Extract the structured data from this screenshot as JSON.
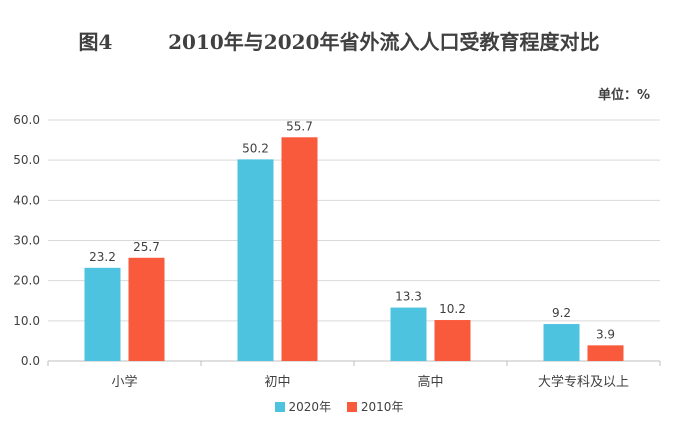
{
  "title": "图4        2010年与2020年省外流入人口受教育程度对比",
  "unit_label": "单位：%",
  "colors": {
    "series_2020": "#4DC3E0",
    "series_2010": "#FA5A3C",
    "grid": "#D9D9D9",
    "axis": "#BFBFBF"
  },
  "chart_data": {
    "type": "bar",
    "title": "图4        2010年与2020年省外流入人口受教育程度对比",
    "ylabel": "单位：%",
    "xlabel": "",
    "categories": [
      "小学",
      "初中",
      "高中",
      "大学专科及以上"
    ],
    "series": [
      {
        "name": "2020年",
        "values": [
          23.2,
          50.2,
          13.3,
          9.2
        ]
      },
      {
        "name": "2010年",
        "values": [
          25.7,
          55.7,
          10.2,
          3.9
        ]
      }
    ],
    "ylim": [
      0,
      60
    ],
    "yticks": [
      "0.0",
      "10.0",
      "20.0",
      "30.0",
      "40.0",
      "50.0",
      "60.0"
    ],
    "data_labels": [
      [
        "23.2",
        "50.2",
        "13.3",
        "9.2"
      ],
      [
        "25.7",
        "55.7",
        "10.2",
        "3.9"
      ]
    ],
    "grid": true,
    "legend_position": "bottom"
  }
}
